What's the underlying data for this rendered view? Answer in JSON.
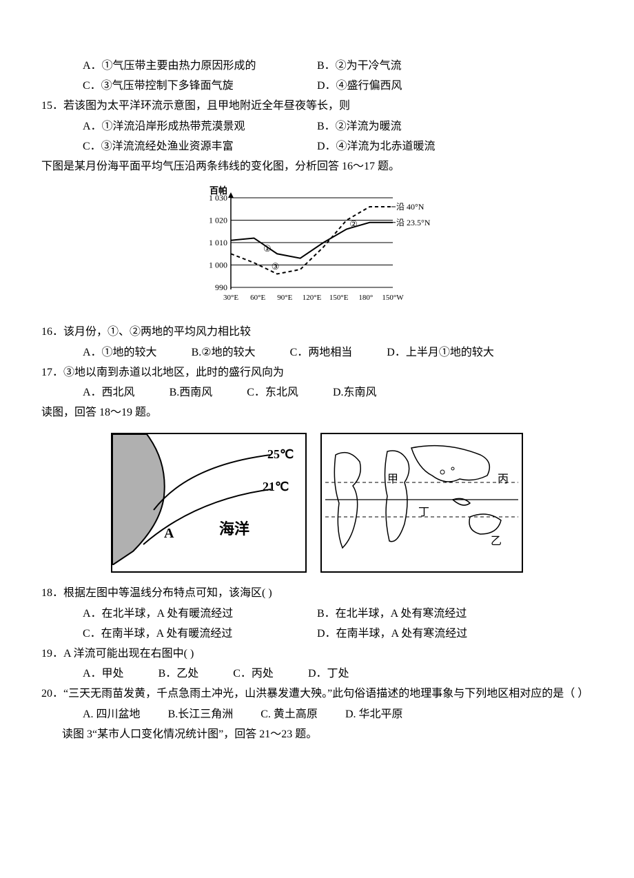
{
  "q14_opts": {
    "a": "A．①气压带主要由热力原因形成的",
    "b": "B．②为干冷气流",
    "c": "C．③气压带控制下多锋面气旋",
    "d": "D．④盛行偏西风"
  },
  "q15": {
    "stem": "15．若该图为太平洋环流示意图，且甲地附近全年昼夜等长，则",
    "a": "A．①洋流沿岸形成热带荒漠景观",
    "b": "B．②洋流为暖流",
    "c": "C．③洋流流经处渔业资源丰富",
    "d": "D．④洋流为北赤道暖流"
  },
  "intro16": "下图是某月份海平面平均气压沿两条纬线的变化图，分析回答 16～17 题。",
  "chart16": {
    "ylabel": "百帕",
    "yticks": [
      "1 030",
      "1 020",
      "1 010",
      "1 000",
      "990"
    ],
    "yvalues": [
      1030,
      1020,
      1010,
      1000,
      990
    ],
    "xticks": [
      "30°E",
      "60°E",
      "90°E",
      "120°E",
      "150°E",
      "180°",
      "150°W"
    ],
    "line_labels": {
      "a": "沿 40°N",
      "b": "沿 23.5°N"
    },
    "markers": [
      "①",
      "②",
      "③"
    ],
    "series40N": [
      1005,
      1001,
      996,
      998,
      1008,
      1020,
      1026,
      1026
    ],
    "series23N": [
      1011,
      1012,
      1005,
      1003,
      1010,
      1016,
      1019,
      1019
    ],
    "colors": {
      "line": "#000000",
      "bg": "#ffffff",
      "grid": "#000000"
    }
  },
  "q16": {
    "stem": "16．该月份，①、②两地的平均风力相比较",
    "a": "A．①地的较大",
    "b": "B.②地的较大",
    "c": "C．两地相当",
    "d": "D．上半月①地的较大"
  },
  "q17": {
    "stem": "17．③地以南到赤道以北地区，此时的盛行风向为",
    "a": "A．西北风",
    "b": "B.西南风",
    "c": "C．东北风",
    "d": "D.东南风"
  },
  "intro18": "读图，回答 18～19 题。",
  "fig18L": {
    "iso_hi": "25℃",
    "iso_lo": "21℃",
    "labelA": "A",
    "ocean": "海洋",
    "land_color": "#b0b0b0",
    "line_color": "#000000"
  },
  "fig18R": {
    "labels": {
      "jia": "甲",
      "yi": "乙",
      "bing": "丙",
      "ding": "丁"
    }
  },
  "q18": {
    "stem": "18．根据左图中等温线分布特点可知，该海区(      )",
    "a": "A．在北半球，A 处有暖流经过",
    "b": "B．在北半球，A 处有寒流经过",
    "c": "C．在南半球，A 处有暖流经过",
    "d": "D．在南半球，A 处有寒流经过"
  },
  "q19": {
    "stem": "19．A 洋流可能出现在右图中(      )",
    "a": "A．甲处",
    "b": "B．乙处",
    "c": "C．丙处",
    "d": "D．丁处"
  },
  "q20": {
    "stem": "20．“三天无雨苗发黄，千点急雨土冲光，山洪暴发遭大殃。”此句俗语描述的地理事象与下列地区相对应的是（        ）",
    "a": "A. 四川盆地",
    "b": "B.长江三角洲",
    "c": "C. 黄土高原",
    "d": "D. 华北平原"
  },
  "intro21": "读图 3“某市人口变化情况统计图”，回答 21～23 题。"
}
